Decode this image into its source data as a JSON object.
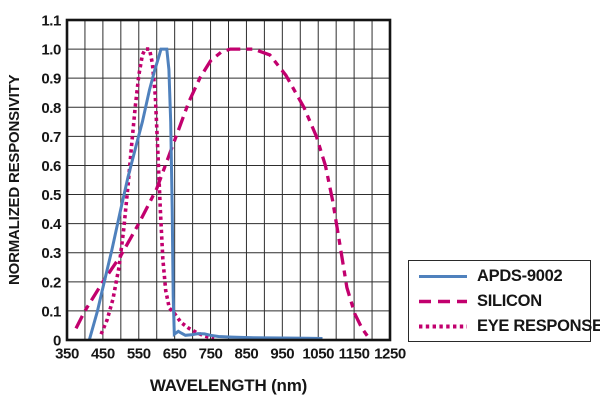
{
  "chart_data": {
    "type": "line",
    "title": "",
    "xlabel": "WAVELENGTH (nm)",
    "ylabel": "NORMALIZED RESPONSIVITY",
    "xlim": [
      350,
      1250
    ],
    "ylim": [
      0,
      1.1
    ],
    "x_ticks": [
      350,
      450,
      550,
      650,
      750,
      850,
      950,
      1050,
      1150,
      1250
    ],
    "y_ticks": [
      "1.1",
      "1.0",
      "0.9",
      "0.8",
      "0.7",
      "0.6",
      "0.5",
      "0.4",
      "0.3",
      "0.2",
      "0.1",
      "0"
    ],
    "minor_grid_x": 50,
    "minor_grid_y": 0.1,
    "grid": true,
    "legend_position": "outside-bottom-right",
    "series": [
      {
        "name": "APDS-9002",
        "color": "#4f81bd",
        "line_style": "solid",
        "points": [
          [
            412,
            0
          ],
          [
            435,
            0.1
          ],
          [
            450,
            0.18
          ],
          [
            475,
            0.31
          ],
          [
            500,
            0.45
          ],
          [
            520,
            0.56
          ],
          [
            545,
            0.68
          ],
          [
            560,
            0.75
          ],
          [
            580,
            0.86
          ],
          [
            595,
            0.93
          ],
          [
            605,
            0.97
          ],
          [
            612,
            1.0
          ],
          [
            628,
            1.0
          ],
          [
            634,
            0.93
          ],
          [
            639,
            0.75
          ],
          [
            643,
            0.45
          ],
          [
            646,
            0.15
          ],
          [
            649,
            0.02
          ],
          [
            655,
            0.025
          ],
          [
            660,
            0.03
          ],
          [
            668,
            0.024
          ],
          [
            680,
            0.016
          ],
          [
            697,
            0.018
          ],
          [
            715,
            0.022
          ],
          [
            733,
            0.021
          ],
          [
            750,
            0.016
          ],
          [
            772,
            0.012
          ],
          [
            810,
            0.01
          ],
          [
            870,
            0.008
          ],
          [
            950,
            0.007
          ],
          [
            1020,
            0.006
          ],
          [
            1062,
            0.005
          ]
        ]
      },
      {
        "name": "SILICON",
        "color": "#c2006e",
        "line_style": "dash-dot",
        "points": [
          [
            375,
            0.04
          ],
          [
            400,
            0.1
          ],
          [
            450,
            0.2
          ],
          [
            500,
            0.29
          ],
          [
            550,
            0.4
          ],
          [
            600,
            0.52
          ],
          [
            630,
            0.62
          ],
          [
            660,
            0.72
          ],
          [
            690,
            0.82
          ],
          [
            720,
            0.9
          ],
          [
            750,
            0.96
          ],
          [
            780,
            0.99
          ],
          [
            805,
            1.0
          ],
          [
            870,
            1.0
          ],
          [
            915,
            0.98
          ],
          [
            960,
            0.91
          ],
          [
            1010,
            0.8
          ],
          [
            1045,
            0.7
          ],
          [
            1070,
            0.6
          ],
          [
            1090,
            0.48
          ],
          [
            1110,
            0.33
          ],
          [
            1130,
            0.18
          ],
          [
            1152,
            0.09
          ],
          [
            1172,
            0.04
          ],
          [
            1192,
            0.005
          ]
        ]
      },
      {
        "name": "EYE RESPONSE",
        "color": "#c2006e",
        "line_style": "dotted",
        "points": [
          [
            445,
            0.02
          ],
          [
            462,
            0.07
          ],
          [
            478,
            0.14
          ],
          [
            495,
            0.25
          ],
          [
            508,
            0.38
          ],
          [
            520,
            0.53
          ],
          [
            530,
            0.67
          ],
          [
            540,
            0.8
          ],
          [
            550,
            0.91
          ],
          [
            560,
            0.98
          ],
          [
            568,
            1.0
          ],
          [
            580,
            1.0
          ],
          [
            588,
            0.95
          ],
          [
            596,
            0.84
          ],
          [
            603,
            0.65
          ],
          [
            610,
            0.45
          ],
          [
            617,
            0.28
          ],
          [
            625,
            0.17
          ],
          [
            635,
            0.11
          ],
          [
            650,
            0.09
          ],
          [
            668,
            0.06
          ],
          [
            690,
            0.04
          ],
          [
            712,
            0.025
          ],
          [
            735,
            0.013
          ],
          [
            760,
            0.005
          ]
        ]
      }
    ]
  }
}
